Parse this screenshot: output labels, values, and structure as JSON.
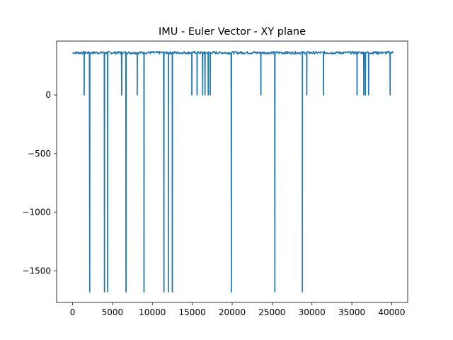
{
  "chart_data": {
    "type": "line",
    "title": "IMU - Euler Vector - XY plane",
    "xlabel": "",
    "ylabel": "",
    "xlim": [
      -2000,
      42000
    ],
    "ylim": [
      -1770,
      460
    ],
    "x_ticks": [
      0,
      5000,
      10000,
      15000,
      20000,
      25000,
      30000,
      35000,
      40000
    ],
    "y_ticks": [
      -1500,
      -1000,
      -500,
      0
    ],
    "grid": false,
    "line_color": "#1f77b4",
    "baseline": {
      "x_range": [
        0,
        40200
      ],
      "value": 360,
      "noise_low": 350,
      "noise_high": 372
    },
    "spikes": [
      {
        "x": 1450,
        "y": 0
      },
      {
        "x": 2150,
        "y": -1680
      },
      {
        "x": 4000,
        "y": -1680
      },
      {
        "x": 4400,
        "y": -1680
      },
      {
        "x": 6150,
        "y": 0
      },
      {
        "x": 6700,
        "y": -1680
      },
      {
        "x": 8100,
        "y": 0
      },
      {
        "x": 8950,
        "y": -1680
      },
      {
        "x": 11450,
        "y": -1680
      },
      {
        "x": 12000,
        "y": -1680
      },
      {
        "x": 12500,
        "y": -1680
      },
      {
        "x": 14950,
        "y": 0
      },
      {
        "x": 15600,
        "y": 0
      },
      {
        "x": 16300,
        "y": 0
      },
      {
        "x": 16600,
        "y": 0
      },
      {
        "x": 17000,
        "y": 0
      },
      {
        "x": 17250,
        "y": 0
      },
      {
        "x": 19900,
        "y": -1680
      },
      {
        "x": 23600,
        "y": 0
      },
      {
        "x": 25350,
        "y": -1680
      },
      {
        "x": 28800,
        "y": -1680
      },
      {
        "x": 29350,
        "y": 0
      },
      {
        "x": 31450,
        "y": 0
      },
      {
        "x": 35650,
        "y": 0
      },
      {
        "x": 36500,
        "y": 0
      },
      {
        "x": 36700,
        "y": 0
      },
      {
        "x": 37100,
        "y": 0
      },
      {
        "x": 39800,
        "y": 0
      }
    ]
  }
}
